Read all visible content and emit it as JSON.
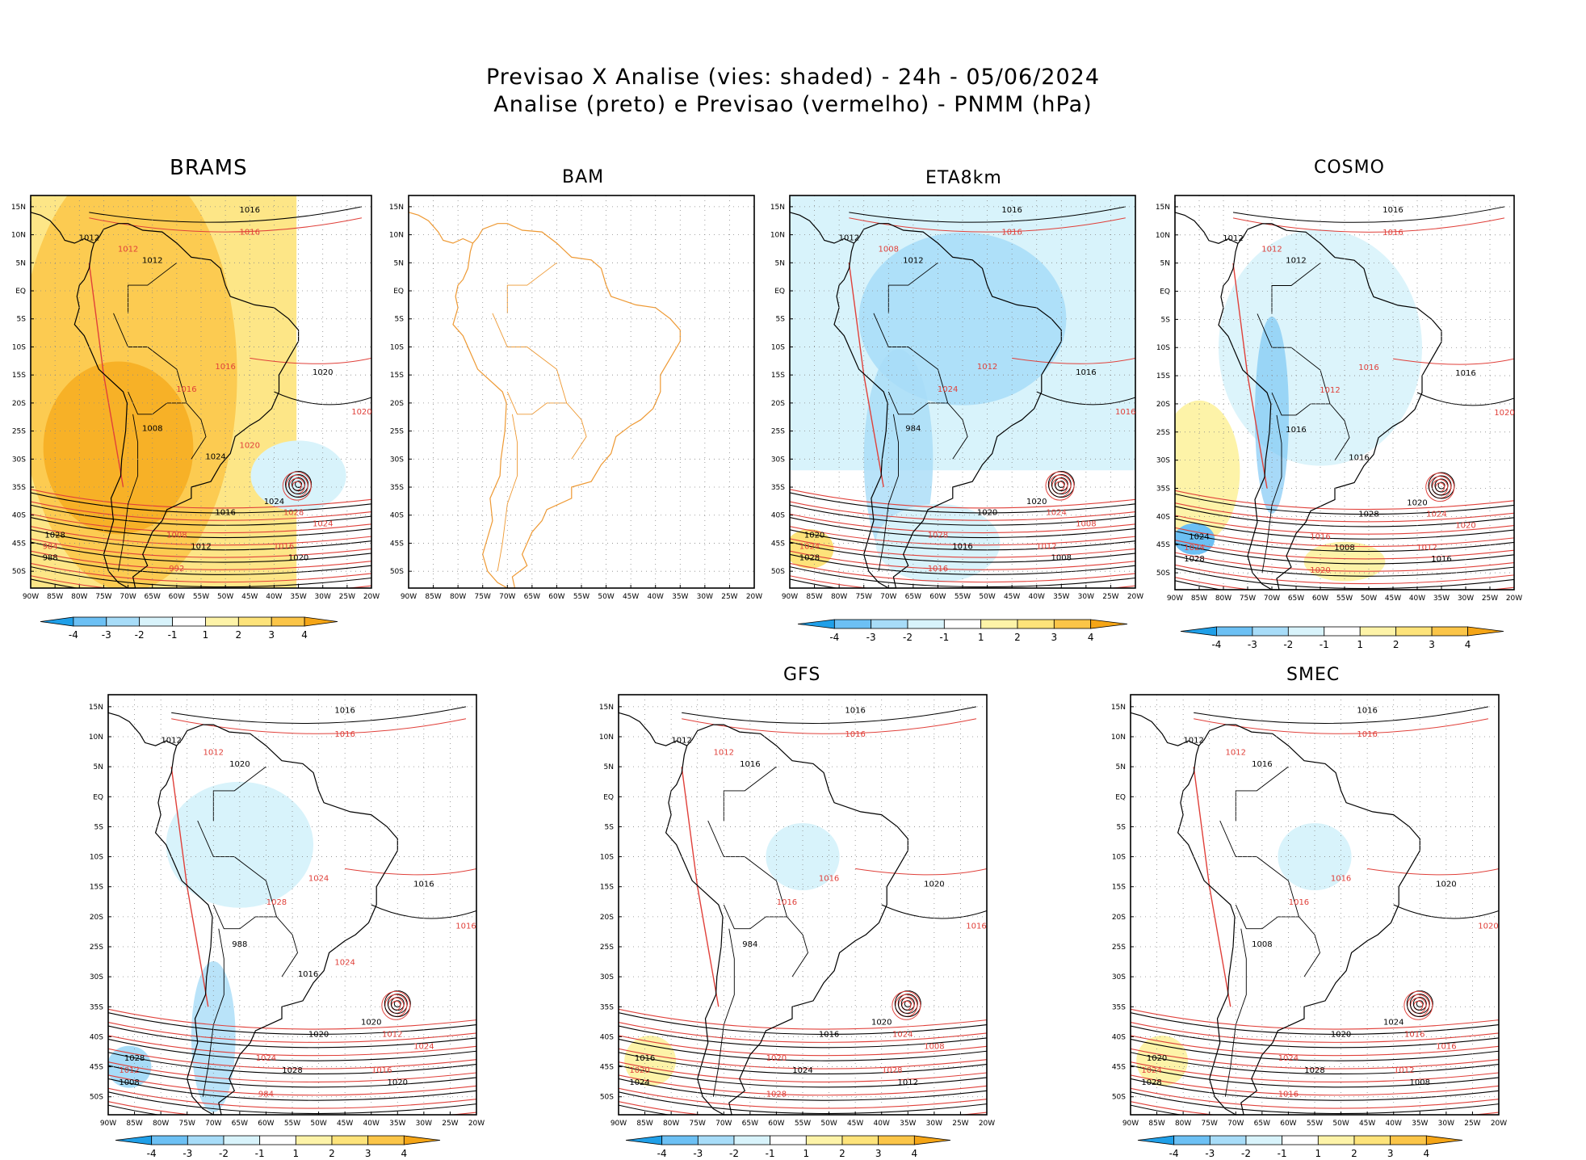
{
  "header": {
    "line1": "Previsao X Analise (vies: shaded) - 24h - 05/06/2024",
    "line2": "Analise (preto) e Previsao (vermelho) - PNMM (hPa)"
  },
  "colors": {
    "analysis": "#000000",
    "forecast": "#e0403a",
    "land_outline_bam": "#ee9933",
    "bias_scale": [
      "#1f9fe8",
      "#6cc0f4",
      "#a7dcf8",
      "#d8f3fb",
      "#ffffff",
      "#fdf3a8",
      "#fde37a",
      "#fbc548",
      "#f5a516"
    ]
  },
  "chart_data": {
    "type": "map-panels",
    "lon_ticks": [
      "90W",
      "85W",
      "80W",
      "75W",
      "70W",
      "65W",
      "60W",
      "55W",
      "50W",
      "45W",
      "40W",
      "35W",
      "30W",
      "25W",
      "20W"
    ],
    "lat_ticks": [
      "15N",
      "10N",
      "5N",
      "EQ",
      "5S",
      "10S",
      "15S",
      "20S",
      "25S",
      "30S",
      "35S",
      "40S",
      "45S",
      "50S"
    ],
    "extent": {
      "lon": [
        -90,
        -20
      ],
      "lat": [
        -53,
        17
      ]
    },
    "colorbar_labels": [
      "-4",
      "-3",
      "-2",
      "-1",
      "1",
      "2",
      "3",
      "4"
    ],
    "panels": [
      {
        "id": "brams",
        "title": "BRAMS",
        "bias": "warm",
        "labels": [
          "1016",
          "1016",
          "1012",
          "1012",
          "1012",
          "1016",
          "1020",
          "1020",
          "1024",
          "1028",
          "1016",
          "1008",
          "1012",
          "1016",
          "1020",
          "1024",
          "1028",
          "984",
          "988",
          "992",
          "1008",
          "1016",
          "1024",
          "1020"
        ]
      },
      {
        "id": "bam",
        "title": "BAM",
        "bias": "none",
        "labels": []
      },
      {
        "id": "eta8km",
        "title": "ETA8km",
        "bias": "cool",
        "labels": [
          "1016",
          "1016",
          "1012",
          "1008",
          "1012",
          "1012",
          "1016",
          "1016",
          "1020",
          "1024",
          "1020",
          "1028",
          "1016",
          "1012",
          "1008",
          "1008",
          "1020",
          "1024",
          "1028",
          "1016",
          "984",
          "1024"
        ]
      },
      {
        "id": "cosmo",
        "title": "COSMO",
        "bias": "mixed",
        "labels": [
          "1016",
          "1016",
          "1012",
          "1012",
          "1012",
          "1016",
          "1016",
          "1020",
          "1020",
          "1024",
          "1028",
          "1016",
          "1008",
          "1012",
          "1016",
          "1020",
          "1024",
          "1024",
          "1028",
          "1020",
          "1016",
          "1012",
          "1016"
        ]
      },
      {
        "id": "unnamed",
        "title": "",
        "bias": "cool-light",
        "labels": [
          "1016",
          "1016",
          "1012",
          "1012",
          "1020",
          "1024",
          "1016",
          "1016",
          "1020",
          "1012",
          "1020",
          "1024",
          "1028",
          "1016",
          "1020",
          "1024",
          "1028",
          "1012",
          "1008",
          "984",
          "988",
          "1028",
          "1016",
          "1024"
        ]
      },
      {
        "id": "gfs",
        "title": "GFS",
        "bias": "neutral",
        "labels": [
          "1016",
          "1016",
          "1012",
          "1012",
          "1016",
          "1016",
          "1020",
          "1016",
          "1020",
          "1024",
          "1016",
          "1020",
          "1024",
          "1028",
          "1012",
          "1008",
          "1016",
          "1020",
          "1024",
          "1028",
          "984",
          "1016"
        ]
      },
      {
        "id": "smec",
        "title": "SMEC",
        "bias": "neutral",
        "labels": [
          "1016",
          "1016",
          "1012",
          "1012",
          "1016",
          "1016",
          "1020",
          "1020",
          "1024",
          "1016",
          "1020",
          "1024",
          "1028",
          "1012",
          "1008",
          "1016",
          "1020",
          "1024",
          "1028",
          "1016",
          "1008",
          "1016"
        ]
      }
    ]
  }
}
